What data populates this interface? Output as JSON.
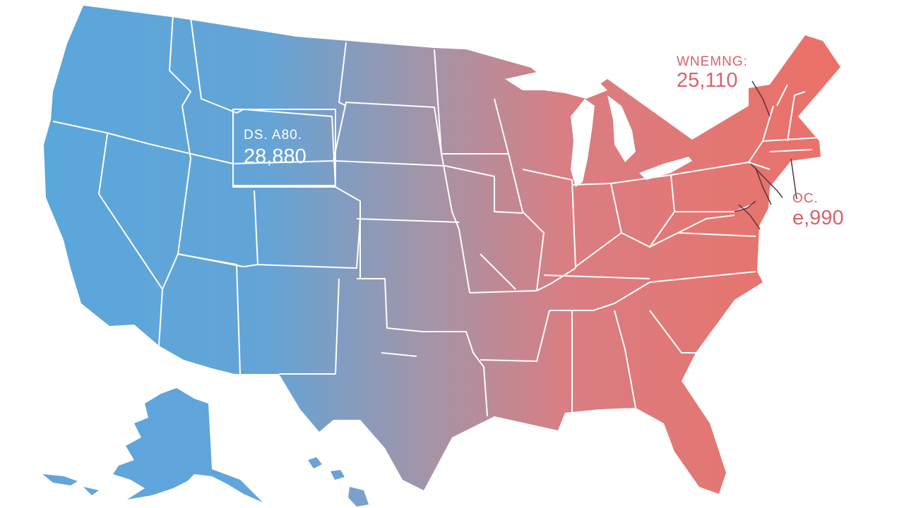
{
  "map": {
    "gradient": {
      "west_color": "#5aa7dc",
      "mid_color": "#a494a8",
      "east_color": "#ec7066"
    },
    "border_color": "#ffffff",
    "background": "#ffffff",
    "annotations": {
      "west": {
        "label": "DS. A80.",
        "value": "28,880"
      },
      "northeast": {
        "label": "WNEMNG:",
        "value": "25,110"
      },
      "dc": {
        "label": "OC.",
        "value": "e,990"
      }
    }
  }
}
